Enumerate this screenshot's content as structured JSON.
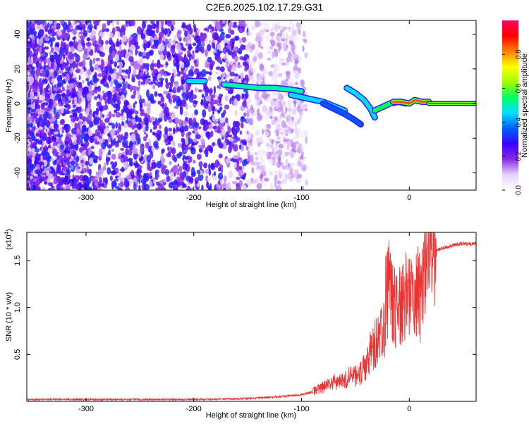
{
  "page": {
    "title": "C2E6.2025.102.17.29.G31"
  },
  "chart_data": [
    {
      "type": "heatmap",
      "xlabel": "Height of straight line (km)",
      "ylabel": "Frequency (Hz)",
      "xlim": [
        -355,
        62
      ],
      "ylim": [
        -50,
        48
      ],
      "xticks": [
        -300,
        -200,
        -100,
        0
      ],
      "yticks": [
        -40,
        -20,
        0,
        20,
        40
      ],
      "colorbar": {
        "label": "Normalized spectral amplitude",
        "range": [
          0,
          1
        ],
        "ticks": [
          "0.0",
          "0.2",
          "0.4",
          "0.6",
          "0.8"
        ],
        "tick_values": [
          0.0,
          0.2,
          0.4,
          0.6,
          0.8
        ],
        "colors": [
          "#ffffff",
          "#e6d2ff",
          "#8a2be2",
          "#3a00ff",
          "#0060ff",
          "#00e0ff",
          "#00ff60",
          "#a0ff00",
          "#ffff00",
          "#ff8000",
          "#ff0000",
          "#ff0060"
        ]
      },
      "tracks": [
        {
          "x": [
            -205,
            -190
          ],
          "y": [
            13,
            13
          ],
          "amp": 0.45
        },
        {
          "x": [
            -172,
            -155,
            -140,
            -125,
            -110,
            -100
          ],
          "y": [
            11,
            10,
            9,
            9,
            8,
            7
          ],
          "amp": 0.5
        },
        {
          "x": [
            -110,
            -95,
            -80,
            -68,
            -60
          ],
          "y": [
            5,
            3,
            1,
            -2,
            -4
          ],
          "amp": 0.45
        },
        {
          "x": [
            -80,
            -70,
            -60,
            -52,
            -45
          ],
          "y": [
            0,
            -3,
            -6,
            -9,
            -12
          ],
          "amp": 0.35
        },
        {
          "x": [
            -58,
            -50,
            -42,
            -36,
            -32
          ],
          "y": [
            9,
            6,
            2,
            -3,
            -8
          ],
          "amp": 0.45
        },
        {
          "x": [
            -32,
            -25,
            -18,
            -10,
            -3
          ],
          "y": [
            -4,
            -2,
            0,
            1,
            0
          ],
          "amp": 0.55
        },
        {
          "x": [
            -15,
            -8,
            0,
            5,
            12,
            18
          ],
          "y": [
            1,
            1,
            0,
            2,
            1,
            1
          ],
          "amp": 0.85
        },
        {
          "x": [
            18,
            62
          ],
          "y": [
            0,
            0
          ],
          "amp": 1.0
        }
      ]
    },
    {
      "type": "line",
      "xlabel": "Height of straight line (km)",
      "ylabel": "SNR (10 * v/v)",
      "scale_label": "(x10",
      "scale_exp": "4",
      "scale_close": ")",
      "xlim": [
        -355,
        62
      ],
      "ylim": [
        0,
        1.8
      ],
      "xticks": [
        -300,
        -200,
        -100,
        0
      ],
      "yticks": [
        0.5,
        1.0,
        1.5
      ],
      "ytick_labels": [
        "0.5",
        "1.0",
        "1.5"
      ],
      "line_color": "#ee3333",
      "series": [
        {
          "x": [
            -355,
            -300,
            -250,
            -200,
            -150,
            -120,
            -100,
            -90,
            -80,
            -70,
            -60,
            -50,
            -45,
            -40,
            -35,
            -30,
            -25,
            -20,
            -18,
            -15,
            -10,
            -5,
            0,
            5,
            10,
            12,
            15,
            20,
            25,
            30,
            40,
            50,
            62
          ],
          "y": [
            0.02,
            0.02,
            0.02,
            0.02,
            0.03,
            0.05,
            0.07,
            0.1,
            0.15,
            0.2,
            0.24,
            0.28,
            0.3,
            0.4,
            0.55,
            0.65,
            0.75,
            0.9,
            1.1,
            1.0,
            1.0,
            1.1,
            1.2,
            1.2,
            1.1,
            1.2,
            1.4,
            1.55,
            1.6,
            1.63,
            1.66,
            1.68,
            1.68
          ]
        }
      ]
    }
  ]
}
